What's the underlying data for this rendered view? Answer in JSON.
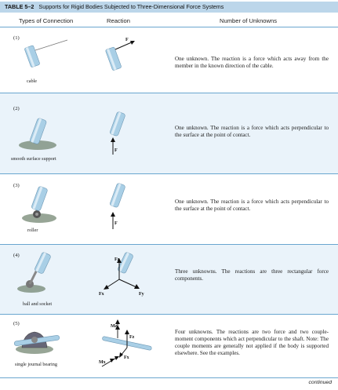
{
  "table": {
    "number": "TABLE 5–2",
    "title": "Supports for Rigid Bodies Subjected to Three-Dimensional Force Systems"
  },
  "headers": {
    "connection": "Types of Connection",
    "reaction": "Reaction",
    "unknowns": "Number of Unknowns"
  },
  "rows": [
    {
      "number": "(1)",
      "label": "cable",
      "force_labels": [
        "F"
      ],
      "description": "One unknown. The reaction is a force which acts away from the member in the known direction of the cable."
    },
    {
      "number": "(2)",
      "label": "smooth surface support",
      "force_labels": [
        "F"
      ],
      "description": "One unknown. The reaction is a force which acts perpendicular to the surface at the point of contact."
    },
    {
      "number": "(3)",
      "label": "roller",
      "force_labels": [
        "F"
      ],
      "description": "One unknown. The reaction is a force which acts perpendicular to the surface at the point of contact."
    },
    {
      "number": "(4)",
      "label": "ball and socket",
      "force_labels": [
        "Fz",
        "Fx",
        "Fy"
      ],
      "description": "Three unknowns. The reactions are three rectangular force components."
    },
    {
      "number": "(5)",
      "label": "single journal bearing",
      "force_labels": [
        "Mz",
        "Fz",
        "Mx",
        "Fx"
      ],
      "description": "Four unknowns. The reactions are two force and two couple-moment components which act perpendicular to the shaft. Note: The couple moments are generally not applied if the body is supported elsewhere. See the examples."
    }
  ],
  "footer": "continued",
  "colors": {
    "title_band": "#bcd6ea",
    "row_tint": "#eaf3fa",
    "rule": "#6aa6cf",
    "member": "#a9cfe6"
  }
}
